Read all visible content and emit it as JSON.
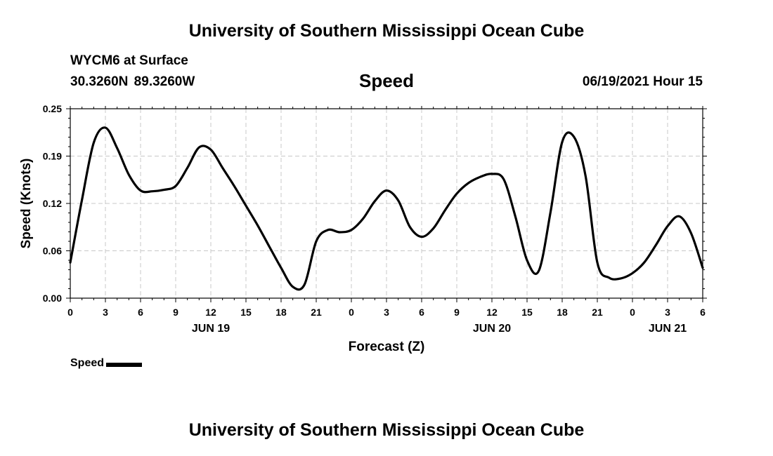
{
  "header": {
    "title": "University of Southern Mississippi Ocean Cube"
  },
  "footer": {
    "title": "University of Southern Mississippi Ocean Cube"
  },
  "station": {
    "name": "WYCM6 at Surface",
    "coords": "30.3260N  89.3260W"
  },
  "chart_title": "Speed",
  "datetime": "06/19/2021 Hour 15",
  "legend": {
    "label": "Speed",
    "color": "#000000"
  },
  "chart_data": {
    "type": "line",
    "title": "Speed",
    "xlabel": "Forecast (Z)",
    "ylabel": "Speed (Knots)",
    "ylim": [
      0,
      0.25
    ],
    "xlim": [
      "2021-06-19 00Z",
      "2021-06-21 06Z"
    ],
    "yticks": [
      "0.00",
      "0.06",
      "0.12",
      "0.19",
      "0.25"
    ],
    "xtick_labels": [
      "0",
      "3",
      "6",
      "9",
      "12",
      "15",
      "18",
      "21",
      "0",
      "3",
      "6",
      "9",
      "12",
      "15",
      "18",
      "21",
      "0",
      "3",
      "6"
    ],
    "date_labels": [
      "JUN 19",
      "JUN 20",
      "JUN 21"
    ],
    "grid": true,
    "series": [
      {
        "name": "Speed",
        "color": "#000000",
        "x": [
          "2021-06-19 00:00",
          "2021-06-19 01:00",
          "2021-06-19 02:00",
          "2021-06-19 03:00",
          "2021-06-19 04:00",
          "2021-06-19 05:00",
          "2021-06-19 06:00",
          "2021-06-19 07:00",
          "2021-06-19 08:00",
          "2021-06-19 09:00",
          "2021-06-19 10:00",
          "2021-06-19 11:00",
          "2021-06-19 12:00",
          "2021-06-19 13:00",
          "2021-06-19 14:00",
          "2021-06-19 15:00",
          "2021-06-19 16:00",
          "2021-06-19 17:00",
          "2021-06-19 18:00",
          "2021-06-19 19:00",
          "2021-06-19 20:00",
          "2021-06-19 21:00",
          "2021-06-19 22:00",
          "2021-06-19 23:00",
          "2021-06-20 00:00",
          "2021-06-20 01:00",
          "2021-06-20 02:00",
          "2021-06-20 03:00",
          "2021-06-20 04:00",
          "2021-06-20 05:00",
          "2021-06-20 06:00",
          "2021-06-20 07:00",
          "2021-06-20 08:00",
          "2021-06-20 09:00",
          "2021-06-20 10:00",
          "2021-06-20 11:00",
          "2021-06-20 12:00",
          "2021-06-20 13:00",
          "2021-06-20 14:00",
          "2021-06-20 15:00",
          "2021-06-20 16:00",
          "2021-06-20 17:00",
          "2021-06-20 18:00",
          "2021-06-20 19:00",
          "2021-06-20 20:00",
          "2021-06-20 21:00",
          "2021-06-20 22:00",
          "2021-06-20 23:00",
          "2021-06-21 00:00",
          "2021-06-21 01:00",
          "2021-06-21 02:00",
          "2021-06-21 03:00",
          "2021-06-21 04:00",
          "2021-06-21 05:00",
          "2021-06-21 06:00"
        ],
        "values": [
          0.047,
          0.13,
          0.205,
          0.225,
          0.198,
          0.163,
          0.142,
          0.141,
          0.143,
          0.148,
          0.172,
          0.199,
          0.196,
          0.172,
          0.148,
          0.122,
          0.096,
          0.068,
          0.04,
          0.015,
          0.018,
          0.075,
          0.09,
          0.087,
          0.09,
          0.105,
          0.128,
          0.142,
          0.129,
          0.094,
          0.081,
          0.092,
          0.116,
          0.138,
          0.152,
          0.16,
          0.164,
          0.157,
          0.108,
          0.05,
          0.036,
          0.113,
          0.206,
          0.213,
          0.161,
          0.047,
          0.027,
          0.026,
          0.033,
          0.047,
          0.07,
          0.095,
          0.108,
          0.086,
          0.04
        ]
      }
    ]
  }
}
